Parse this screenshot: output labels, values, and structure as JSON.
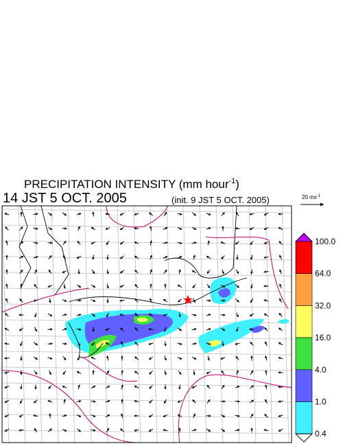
{
  "header": {
    "title": "PRECIPITATION INTENSITY (mm hour",
    "title_exponent": "-1",
    "title_close": ")",
    "time": "14 JST 5 OCT. 2005",
    "init": "(init. 9 JST 5 OCT. 2005)"
  },
  "vector_scale": {
    "label": "20 ms",
    "exponent": "-1"
  },
  "colorbar": {
    "labels": [
      "100.0",
      "64.0",
      "32.0",
      "16.0",
      "4.0",
      "1.0",
      "0.4"
    ],
    "colors": [
      "#c000ff",
      "#ff0000",
      "#ffa040",
      "#ffff60",
      "#40e040",
      "#6060ff",
      "#40f0ff",
      "#ffffff"
    ]
  }
}
